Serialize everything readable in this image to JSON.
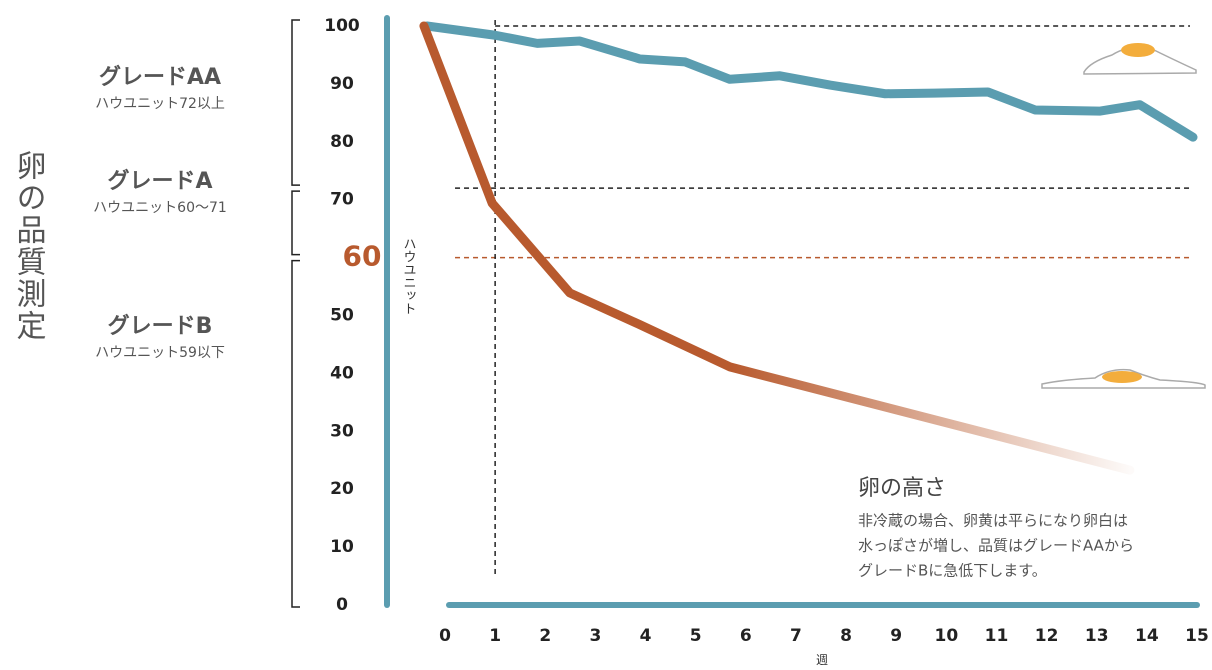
{
  "chart_data": {
    "type": "line",
    "ylabel": "卵の品質測定",
    "y_axis_label": "ハウユニット",
    "xlabel": "週",
    "xlim": [
      0,
      15
    ],
    "xticks": [
      0,
      1,
      2,
      3,
      4,
      5,
      6,
      7,
      8,
      9,
      10,
      11,
      12,
      13,
      14,
      15
    ],
    "ylim": [
      0,
      100
    ],
    "yticks": [
      0,
      10,
      20,
      30,
      40,
      50,
      60,
      70,
      80,
      90,
      100
    ],
    "axis_color": "#5b9db0",
    "series": [
      {
        "color": "#5b9db0",
        "x": [
          -0.36,
          1.0,
          1.84,
          2.69,
          3.89,
          4.79,
          5.68,
          6.68,
          7.68,
          8.78,
          9.77,
          10.83,
          11.77,
          13.07,
          13.86,
          14.92
        ],
        "values": [
          100,
          98.4,
          97.0,
          97.4,
          94.3,
          93.8,
          90.8,
          91.4,
          89.8,
          88.3,
          88.4,
          88.6,
          85.5,
          85.3,
          86.4,
          80.8
        ]
      },
      {
        "color": "#b85a2e",
        "fade": true,
        "x": [
          -0.42,
          0.94,
          2.49,
          3.89,
          5.69,
          13.66
        ],
        "values": [
          100,
          69.4,
          53.9,
          48.4,
          41.1,
          23.3
        ]
      }
    ],
    "reference_lines": [
      {
        "value": 100,
        "color": "#222222",
        "from": 1
      },
      {
        "value": 72,
        "color": "#222222",
        "from": 0.2
      },
      {
        "value": 60,
        "color": "#b85a2e",
        "from": 0.2
      }
    ],
    "vertical_lines": [
      {
        "value": 1,
        "color": "#222222"
      }
    ],
    "grades": [
      {
        "name": "グレードAA",
        "range_label": "ハウユニット72以上",
        "from": 72,
        "to": 100
      },
      {
        "name": "グレードA",
        "range_label": "ハウユニット60〜71",
        "from": 60,
        "to": 72
      },
      {
        "name": "グレードB",
        "range_label": "ハウユニット59以下",
        "from": 0,
        "to": 60
      }
    ],
    "annotation": {
      "title": "卵の高さ",
      "lines": [
        "非冷蔵の場合、卵黄は平らになり卵白は",
        "水っぽさが増し、品質はグレードAAから",
        "グレードBに急低下します。"
      ]
    }
  }
}
